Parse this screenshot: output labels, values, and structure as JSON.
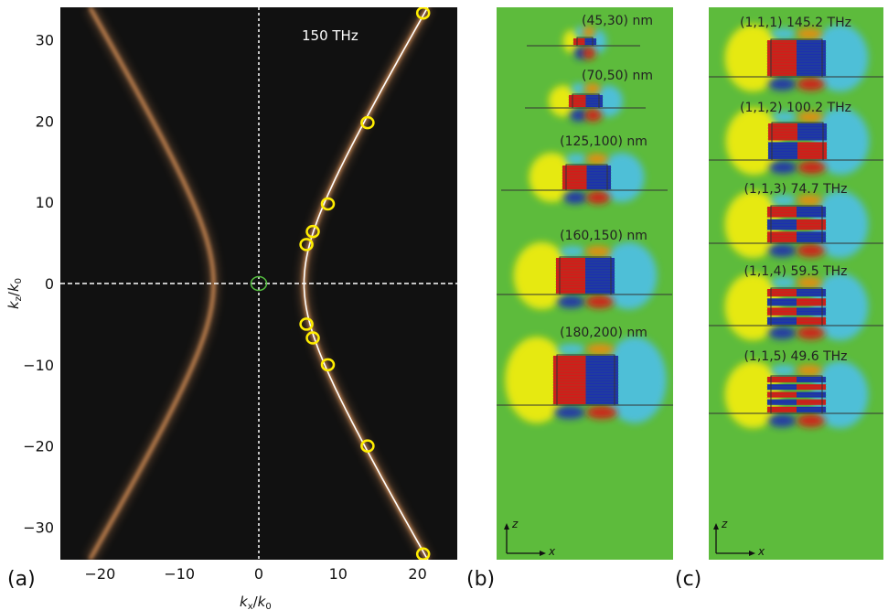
{
  "chart_data": {
    "type": "scatter",
    "annotation": "150 THz",
    "xlabel": "k_x/k_0",
    "ylabel": "k_z/k_0",
    "xlim": [
      -25,
      25
    ],
    "ylim": [
      -34,
      34
    ],
    "xticks": [
      -20,
      -10,
      0,
      10,
      20
    ],
    "yticks": [
      -30,
      -20,
      -10,
      0,
      10,
      20,
      30
    ],
    "xtick_labels": [
      "−20",
      "−10",
      "0",
      "10",
      "20"
    ],
    "ytick_labels": [
      "−30",
      "−20",
      "−10",
      "0",
      "10",
      "20",
      "30"
    ],
    "grid": false,
    "background": "#111111",
    "dashed_axes_at_zero": true,
    "isofrequency_hyperbola": {
      "vertex_kx": 5.7,
      "asymptote_b": 9.45,
      "color": "#f0a060"
    },
    "analytic_curve_color": "#ffffff",
    "mode_points": {
      "color": "#ffee00",
      "x": [
        20.7,
        13.7,
        8.7,
        6.8,
        6.0,
        6.0,
        6.8,
        8.7,
        13.7,
        20.7
      ],
      "y": [
        33.3,
        19.8,
        9.8,
        6.4,
        4.8,
        -5.0,
        -6.7,
        -10.0,
        -20.0,
        -33.3
      ]
    },
    "light_cone_point": {
      "x": 0,
      "y": 0,
      "color": "#55c040"
    }
  },
  "panel_labels": {
    "a": "(a)",
    "b": "(b)",
    "c": "(c)"
  },
  "axis_title": {
    "x_main": "k",
    "x_sub": "x",
    "x_den": "k",
    "x_den_sub": "0",
    "y_main": "k",
    "y_sub": "z",
    "y_den": "k",
    "y_den_sub": "0",
    "slash": "/"
  },
  "panel_b": {
    "modes": [
      {
        "label": "(45,30) nm"
      },
      {
        "label": "(70,50) nm"
      },
      {
        "label": "(125,100) nm"
      },
      {
        "label": "(160,150) nm"
      },
      {
        "label": "(180,200) nm"
      }
    ],
    "axis_z": "z",
    "axis_x": "x"
  },
  "panel_c": {
    "modes": [
      {
        "label": "(1,1,1) 145.2 THz",
        "order": 1
      },
      {
        "label": "(1,1,2) 100.2 THz",
        "order": 2
      },
      {
        "label": "(1,1,3) 74.7 THz",
        "order": 3
      },
      {
        "label": "(1,1,4) 59.5 THz",
        "order": 4
      },
      {
        "label": "(1,1,5) 49.6 THz",
        "order": 5
      }
    ],
    "axis_z": "z",
    "axis_x": "x"
  },
  "colors": {
    "field_bg": "#5dbb3c",
    "positive": "#d81818",
    "negative": "#1c2fb0",
    "yellow": "#f5ee10",
    "cyan": "#4ec0e8"
  }
}
